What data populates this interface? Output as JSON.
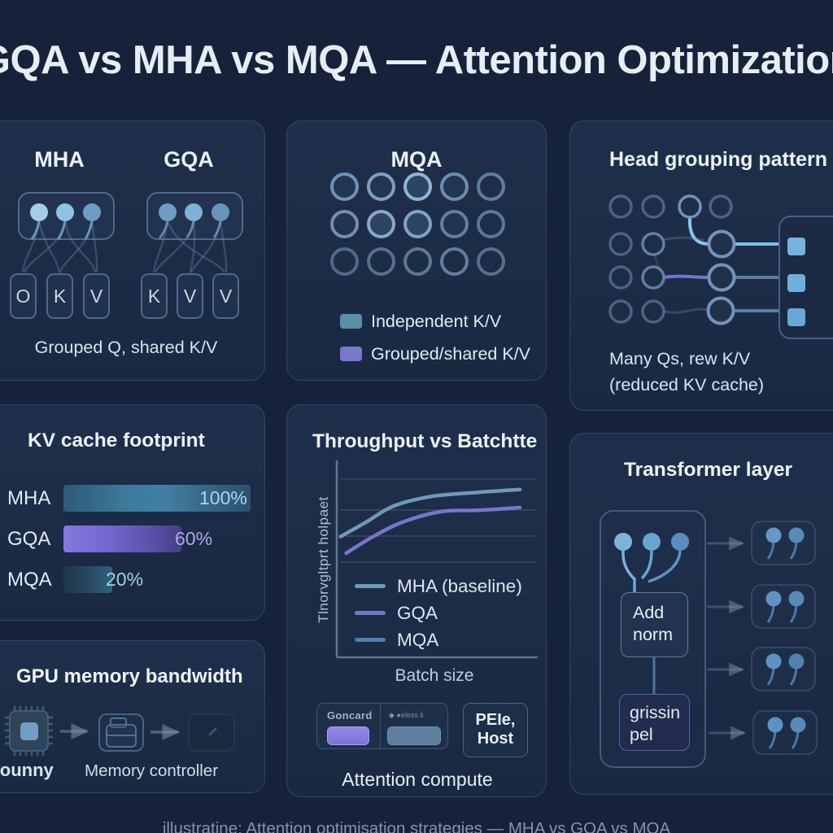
{
  "title": "GQA vs MHA vs MQA — Attention Optimization",
  "colors": {
    "background": "#16223a",
    "teal_accent": "#5b8fa8",
    "purple_accent": "#7a77cc",
    "light_blue_accent": "#8ac4ec"
  },
  "panels": {
    "mha_gqa": {
      "mha_heading": "MHA",
      "gqa_heading": "GQA",
      "mha_boxes": [
        "O",
        "K",
        "V"
      ],
      "gqa_boxes": [
        "K",
        "V",
        "V"
      ],
      "caption": "Grouped Q, shared K/V"
    },
    "mqa": {
      "heading": "MQA",
      "grid": {
        "rows": 3,
        "cols": 5
      },
      "legend": [
        {
          "label": "Independent K/V",
          "color": "#5b8fa8"
        },
        {
          "label": "Grouped/shared K/V",
          "color": "#7a77cc"
        }
      ]
    },
    "head_grouping": {
      "heading": "Head grouping pattern",
      "caption_line1": "Many Qs, rew K/V",
      "caption_line2": "(reduced KV cache)"
    },
    "kv_cache": {
      "heading": "KV cache footprint"
    },
    "throughput": {
      "heading": "Throughput vs Batchtte",
      "ylabel": "Tlnorvgltprt holpaet",
      "xlabel": "Batch size",
      "legend": [
        "MHA (baseline)",
        "GQA",
        "MQA"
      ],
      "hw": {
        "gpu_label": "Goncard",
        "bus_label": "◆ ●eless.li",
        "host_line1": "PEIe,",
        "host_line2": "Host",
        "caption": "Attention compute"
      }
    },
    "transformer": {
      "heading": "Transformer layer",
      "box1_line1": "Add",
      "box1_line2": "norm",
      "box2_line1": "grissin",
      "box2_line2": "pel"
    },
    "gpu": {
      "heading": "GPU memory bandwidth",
      "label1": "crounny",
      "label2": "Memory controller"
    }
  },
  "footer": "illustratine: Attention optimisation strategies — MHA vs GQA vs MQA",
  "chart_data": [
    {
      "type": "bar",
      "title": "KV cache footprint",
      "orientation": "horizontal",
      "categories": [
        "MHA",
        "GQA",
        "MQA"
      ],
      "values": [
        100,
        60,
        20
      ],
      "value_labels": [
        "100%",
        "60%",
        "20%"
      ],
      "bar_colors": [
        "#3f7fa2",
        "#7b6fd6",
        "#2d5168"
      ],
      "xlim": [
        0,
        100
      ],
      "grid": false
    },
    {
      "type": "line",
      "title": "Throughput vs Batchtte",
      "xlabel": "Batch size",
      "ylabel": "Tlnorvgltprt holpaet",
      "legend_position": "inside-bottom-left",
      "grid": true,
      "gridlines": 4,
      "axis_tick_labels": "none shown; point values are relative 0-100 estimates",
      "series": [
        {
          "name": "MHA (baseline)",
          "color": "#6e9ab8",
          "points": [
            [
              2,
              42
            ],
            [
              15,
              52
            ],
            [
              30,
              64
            ],
            [
              50,
              71
            ],
            [
              75,
              74
            ],
            [
              97,
              76
            ]
          ]
        },
        {
          "name": "GQA",
          "color": "#7a74cc",
          "points": [
            [
              5,
              30
            ],
            [
              18,
              41
            ],
            [
              34,
              52
            ],
            [
              55,
              60
            ],
            [
              75,
              61
            ],
            [
              97,
              63
            ]
          ]
        },
        {
          "name": "MQA",
          "color": "#4f7fa8",
          "points": []
        }
      ]
    }
  ]
}
